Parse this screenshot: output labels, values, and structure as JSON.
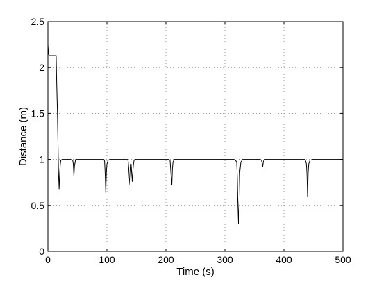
{
  "chart_data": {
    "type": "line",
    "title": "",
    "xlabel": "Time (s)",
    "ylabel": "Distance (m)",
    "xlim": [
      0,
      500
    ],
    "ylim": [
      0,
      2.5
    ],
    "xticks": [
      0,
      100,
      200,
      300,
      400,
      500
    ],
    "yticks": [
      0,
      0.5,
      1,
      1.5,
      2,
      2.5
    ],
    "xtick_labels": [
      "0",
      "100",
      "200",
      "300",
      "400",
      "500"
    ],
    "ytick_labels": [
      "0",
      "0.5",
      "1",
      "1.5",
      "2",
      "2.5"
    ],
    "grid": true,
    "legend": "none",
    "line_color": "#000000",
    "series": [
      {
        "x": [
          0,
          1,
          2,
          3,
          14,
          14.5,
          15,
          16,
          17,
          18,
          19,
          20,
          21,
          22,
          24,
          26,
          28,
          30,
          35,
          40,
          42,
          43,
          44,
          45,
          47,
          50,
          60,
          70,
          80,
          90,
          95,
          96,
          97,
          98,
          99,
          100,
          102,
          105,
          110,
          120,
          130,
          135,
          136,
          137,
          138,
          139,
          140,
          141,
          142,
          143,
          144,
          145,
          146,
          148,
          150,
          160,
          170,
          180,
          190,
          200,
          205,
          207,
          208,
          209,
          210,
          211,
          212,
          214,
          216,
          220,
          230,
          240,
          250,
          260,
          270,
          280,
          290,
          300,
          310,
          315,
          318,
          320,
          321,
          322,
          323,
          324,
          325,
          327,
          330,
          340,
          350,
          360,
          362,
          363,
          364,
          365,
          366,
          368,
          370,
          380,
          390,
          400,
          410,
          420,
          430,
          435,
          437,
          438,
          439,
          440,
          441,
          442,
          444,
          448,
          455,
          460,
          470,
          480,
          490,
          500
        ],
        "y": [
          2.25,
          2.15,
          2.13,
          2.13,
          2.13,
          1.95,
          1.8,
          1.55,
          1.2,
          0.85,
          0.68,
          0.85,
          0.95,
          0.99,
          1.0,
          1.0,
          1.0,
          1.0,
          1.0,
          1.0,
          0.99,
          0.95,
          0.82,
          0.93,
          1.0,
          1.0,
          1.0,
          1.0,
          1.0,
          1.0,
          1.0,
          0.98,
          0.85,
          0.64,
          0.85,
          0.95,
          0.99,
          1.0,
          1.0,
          1.0,
          1.0,
          1.0,
          0.98,
          0.9,
          0.8,
          0.72,
          0.85,
          0.95,
          0.85,
          0.76,
          0.88,
          0.95,
          0.99,
          1.0,
          1.0,
          1.0,
          1.0,
          1.0,
          1.0,
          1.0,
          1.0,
          0.99,
          0.9,
          0.8,
          0.72,
          0.9,
          0.97,
          1.0,
          1.0,
          1.0,
          1.0,
          1.0,
          1.0,
          1.0,
          1.0,
          1.0,
          1.0,
          1.0,
          1.0,
          1.0,
          0.99,
          0.97,
          0.8,
          0.5,
          0.3,
          0.55,
          0.85,
          0.97,
          1.0,
          1.0,
          1.0,
          1.0,
          0.99,
          0.96,
          0.92,
          0.97,
          0.99,
          1.0,
          1.0,
          1.0,
          1.0,
          1.0,
          1.0,
          1.0,
          1.0,
          1.0,
          0.98,
          0.95,
          0.85,
          0.6,
          0.85,
          0.95,
          0.99,
          1.0,
          1.0,
          1.0,
          1.0,
          1.0,
          1.0,
          1.0
        ]
      }
    ]
  }
}
